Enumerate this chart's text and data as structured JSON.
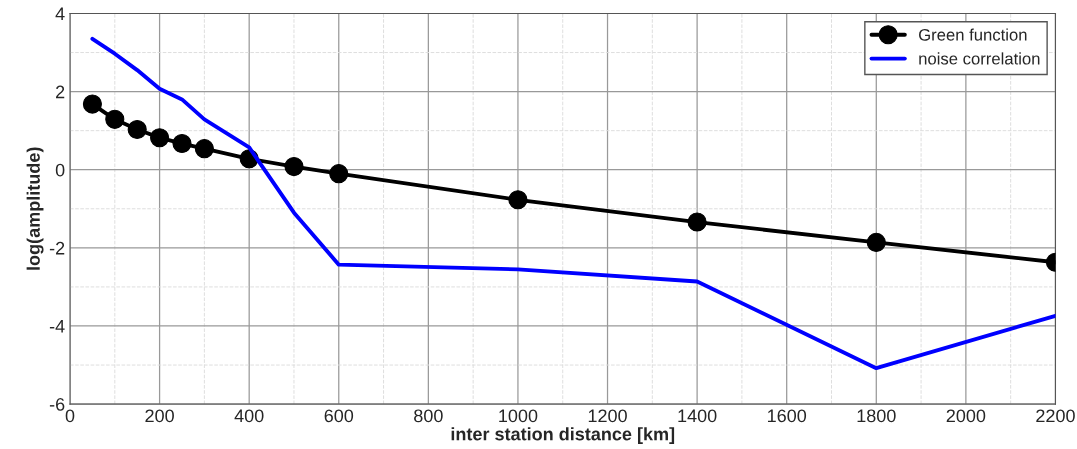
{
  "chart_data": {
    "type": "line",
    "xlabel": "inter station distance [km]",
    "ylabel": "log(amplitude)",
    "xlim": [
      0,
      2200
    ],
    "ylim": [
      -6,
      4
    ],
    "xticks": [
      0,
      200,
      400,
      600,
      800,
      1000,
      1200,
      1400,
      1600,
      1800,
      2000,
      2200
    ],
    "yticks": [
      -6,
      -4,
      -2,
      0,
      2,
      4
    ],
    "grid": true,
    "legend": "top right",
    "series": [
      {
        "name": "Green function",
        "color": "#000000",
        "marker": "circle",
        "x": [
          50,
          100,
          150,
          200,
          250,
          300,
          400,
          500,
          600,
          1000,
          1400,
          1800,
          2200
        ],
        "values": [
          1.68,
          1.29,
          1.03,
          0.82,
          0.67,
          0.54,
          0.28,
          0.08,
          -0.1,
          -0.77,
          -1.34,
          -1.86,
          -2.37
        ]
      },
      {
        "name": "noise correlation",
        "color": "#0000ff",
        "marker": "none",
        "x": [
          50,
          100,
          150,
          200,
          250,
          300,
          400,
          500,
          600,
          1000,
          1400,
          1800,
          2200
        ],
        "values": [
          3.35,
          2.97,
          2.55,
          2.07,
          1.8,
          1.29,
          0.57,
          -1.1,
          -2.43,
          -2.55,
          -2.86,
          -5.08,
          -3.74
        ]
      }
    ]
  }
}
